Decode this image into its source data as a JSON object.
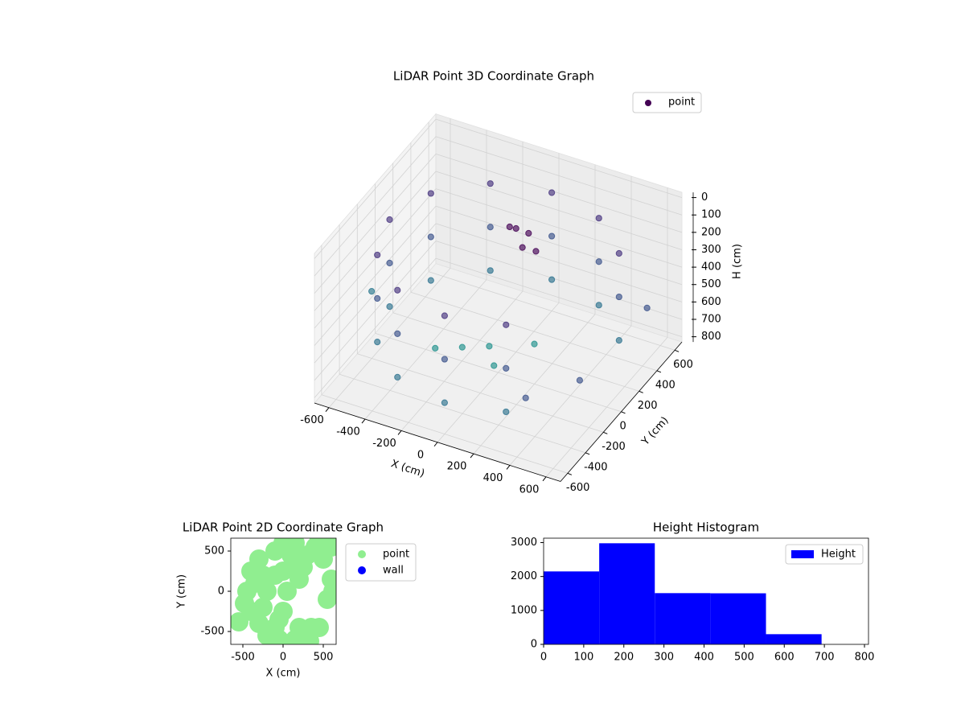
{
  "chart_data": [
    {
      "type": "scatter3d",
      "title": "LiDAR Point 3D Coordinate Graph",
      "x_label": "X (cm)",
      "y_label": "Y (cm)",
      "z_label": "H (cm)",
      "xlim": [
        -680,
        680
      ],
      "ylim": [
        -680,
        680
      ],
      "zlim": [
        -30,
        830
      ],
      "z_inverted": true,
      "xticks": [
        -600,
        -400,
        -200,
        0,
        200,
        400,
        600
      ],
      "yticks": [
        -600,
        -400,
        -200,
        0,
        200,
        400,
        600
      ],
      "zticks": [
        0,
        100,
        200,
        300,
        400,
        500,
        600,
        700,
        800
      ],
      "grid": true,
      "legend": "upper right",
      "series": [
        {
          "name": "point",
          "legend_color": "#440154",
          "x": [
            520,
            520,
            520,
            300,
            300,
            300,
            0,
            0,
            0,
            -300,
            -300,
            -300,
            -520,
            -520,
            -520,
            -600,
            -600,
            -600,
            -520,
            -520,
            -520,
            -300,
            -300,
            -300,
            0,
            0,
            0,
            300,
            300,
            300,
            0,
            60,
            -60,
            100,
            20,
            -100,
            0,
            200,
            -200,
            100,
            300,
            500,
            650,
            -650
          ],
          "y": [
            300,
            300,
            300,
            520,
            520,
            520,
            600,
            600,
            600,
            520,
            520,
            520,
            300,
            300,
            300,
            0,
            0,
            0,
            -300,
            -300,
            -300,
            -520,
            -520,
            -520,
            -600,
            -600,
            -600,
            -520,
            -520,
            -520,
            200,
            150,
            250,
            220,
            300,
            -200,
            -100,
            0,
            -300,
            -250,
            -300,
            -100,
            350,
            -100
          ],
          "h": [
            150,
            400,
            650,
            150,
            400,
            650,
            150,
            400,
            650,
            150,
            400,
            650,
            150,
            400,
            650,
            150,
            400,
            650,
            150,
            400,
            650,
            150,
            400,
            650,
            150,
            400,
            650,
            150,
            400,
            650,
            120,
            180,
            160,
            230,
            200,
            600,
            620,
            600,
            580,
            610,
            700,
            650,
            450,
            520
          ],
          "colors": [
            "#46337e",
            "#3b528b",
            "#2c728e",
            "#46337e",
            "#3b528b",
            "#2c728e",
            "#46337e",
            "#3b528b",
            "#2c728e",
            "#46337e",
            "#3b528b",
            "#2c728e",
            "#46337e",
            "#3b528b",
            "#2c728e",
            "#46337e",
            "#3b528b",
            "#2c728e",
            "#46337e",
            "#3b528b",
            "#2c728e",
            "#46337e",
            "#3b528b",
            "#2c728e",
            "#46337e",
            "#3b528b",
            "#2c728e",
            "#46337e",
            "#3b528b",
            "#2c728e",
            "#440154",
            "#440154",
            "#440154",
            "#440154",
            "#440154",
            "#21918c",
            "#21918c",
            "#21918c",
            "#21918c",
            "#21918c",
            "#3b528b",
            "#3b528b",
            "#3b528b",
            "#2a788e"
          ]
        }
      ]
    },
    {
      "type": "scatter",
      "title": "LiDAR Point 2D Coordinate Graph",
      "x_label": "X (cm)",
      "y_label": "Y (cm)",
      "xlim": [
        -650,
        660
      ],
      "ylim": [
        -660,
        660
      ],
      "xticks": [
        -500,
        0,
        500
      ],
      "yticks": [
        -500,
        0,
        500
      ],
      "legend": "outside right",
      "series": [
        {
          "name": "point",
          "color": "#90ee90",
          "x": [
            -450,
            -400,
            -400,
            -300,
            -300,
            -200,
            -250,
            -250,
            -100,
            -100,
            0,
            0,
            0,
            50,
            150,
            150,
            200,
            -50,
            200,
            300,
            350,
            450,
            300,
            400,
            500,
            600,
            550,
            620,
            600,
            450,
            -550,
            -100,
            -200,
            150,
            250,
            -480,
            -350,
            100,
            -50,
            330
          ],
          "y": [
            0,
            250,
            -250,
            400,
            -400,
            0,
            200,
            -200,
            500,
            -450,
            600,
            250,
            -250,
            0,
            600,
            350,
            150,
            -350,
            -450,
            -550,
            -450,
            -450,
            450,
            550,
            400,
            550,
            -100,
            0,
            150,
            650,
            -380,
            200,
            -550,
            -600,
            300,
            -150,
            100,
            450,
            -600,
            -620
          ]
        },
        {
          "name": "wall",
          "color": "#0000ff",
          "x": [],
          "y": []
        }
      ]
    },
    {
      "type": "histogram",
      "title": "Height Histogram",
      "bins": [
        0,
        138.6,
        277.2,
        415.8,
        554.4,
        693
      ],
      "counts": [
        2150,
        2980,
        1510,
        1505,
        300
      ],
      "series_name": "Height",
      "color": "#0000ff",
      "xlim": [
        0,
        810
      ],
      "ylim": [
        0,
        3130
      ],
      "xticks": [
        0,
        100,
        200,
        300,
        400,
        500,
        600,
        700,
        800
      ],
      "yticks": [
        0,
        1000,
        2000,
        3000
      ],
      "legend": "upper right"
    }
  ]
}
